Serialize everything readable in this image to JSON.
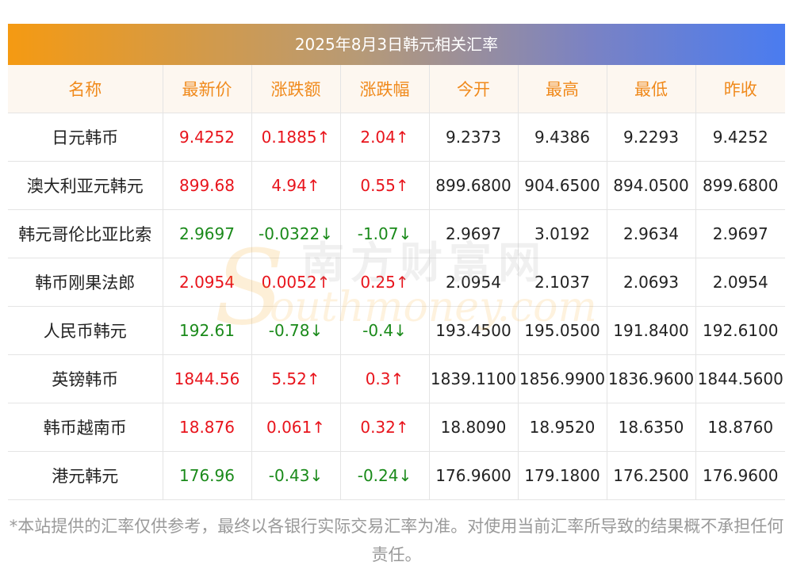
{
  "title": "2025年8月3日韩元相关汇率",
  "columns": [
    "名称",
    "最新价",
    "涨跌额",
    "涨跌幅",
    "今开",
    "最高",
    "最低",
    "昨收"
  ],
  "rows": [
    {
      "name": "日元韩币",
      "latest": "9.4252",
      "change": "0.1885↑",
      "pct": "2.04↑",
      "open": "9.2373",
      "high": "9.4386",
      "low": "9.2293",
      "prev": "9.4252",
      "dir": "up"
    },
    {
      "name": "澳大利亚元韩元",
      "latest": "899.68",
      "change": "4.94↑",
      "pct": "0.55↑",
      "open": "899.6800",
      "high": "904.6500",
      "low": "894.0500",
      "prev": "899.6800",
      "dir": "up"
    },
    {
      "name": "韩元哥伦比亚比索",
      "latest": "2.9697",
      "change": "-0.0322↓",
      "pct": "-1.07↓",
      "open": "2.9697",
      "high": "3.0192",
      "low": "2.9634",
      "prev": "2.9697",
      "dir": "down"
    },
    {
      "name": "韩币刚果法郎",
      "latest": "2.0954",
      "change": "0.0052↑",
      "pct": "0.25↑",
      "open": "2.0954",
      "high": "2.1037",
      "low": "2.0693",
      "prev": "2.0954",
      "dir": "up"
    },
    {
      "name": "人民币韩元",
      "latest": "192.61",
      "change": "-0.78↓",
      "pct": "-0.4↓",
      "open": "193.4500",
      "high": "195.0500",
      "low": "191.8400",
      "prev": "192.6100",
      "dir": "down"
    },
    {
      "name": "英镑韩币",
      "latest": "1844.56",
      "change": "5.52↑",
      "pct": "0.3↑",
      "open": "1839.1100",
      "high": "1856.9900",
      "low": "1836.9600",
      "prev": "1844.5600",
      "dir": "up"
    },
    {
      "name": "韩币越南币",
      "latest": "18.876",
      "change": "0.061↑",
      "pct": "0.32↑",
      "open": "18.8090",
      "high": "18.9520",
      "low": "18.6350",
      "prev": "18.8760",
      "dir": "up"
    },
    {
      "name": "港元韩元",
      "latest": "176.96",
      "change": "-0.43↓",
      "pct": "-0.24↓",
      "open": "176.9600",
      "high": "179.1800",
      "low": "176.2500",
      "prev": "176.9600",
      "dir": "down"
    }
  ],
  "watermark": {
    "cn": "南方财富网",
    "en": "outhmoney.com",
    "s": "S"
  },
  "footer": "*本站提供的汇率仅供参考，最终以各银行实际交易汇率为准。对使用当前汇率所导致的结果概不承担任何责任。",
  "colors": {
    "up": "#e8141c",
    "down": "#1a8a1a",
    "header_text": "#f08a1c",
    "header_bg": "#fdf7f0"
  }
}
